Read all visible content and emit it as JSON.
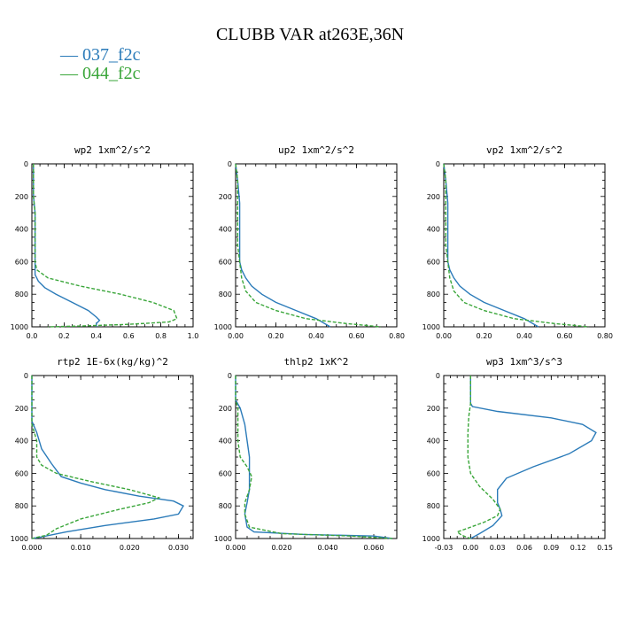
{
  "title": "CLUBB VAR at263E,36N",
  "legend": [
    {
      "label": "037_f2c",
      "color": "#2b7bb9"
    },
    {
      "label": "044_f2c",
      "color": "#3aa63a"
    }
  ],
  "chart_data": [
    {
      "type": "line",
      "title": "wp2   1xm^2/s^2",
      "xlim": [
        0.0,
        1.0
      ],
      "xticks": [
        "0.0",
        "0.2",
        "0.4",
        "0.6",
        "0.8",
        "1.0"
      ],
      "xtick_values": [
        0.0,
        0.2,
        0.4,
        0.6,
        0.8,
        1.0
      ],
      "ylim": [
        0,
        1000
      ],
      "yticks": [
        "0",
        "200",
        "400",
        "600",
        "800",
        "1000"
      ],
      "series": [
        {
          "name": "037_f2c",
          "x": [
            0.01,
            0.01,
            0.02,
            0.02,
            0.02,
            0.02,
            0.02,
            0.04,
            0.08,
            0.15,
            0.25,
            0.35,
            0.4,
            0.42,
            0.4,
            0.4
          ],
          "y": [
            0,
            200,
            300,
            400,
            500,
            600,
            680,
            720,
            760,
            800,
            850,
            900,
            940,
            960,
            980,
            1000
          ]
        },
        {
          "name": "044_f2c",
          "x": [
            0.01,
            0.01,
            0.02,
            0.02,
            0.02,
            0.02,
            0.03,
            0.1,
            0.3,
            0.55,
            0.75,
            0.88,
            0.9,
            0.85,
            0.6,
            0.3,
            0.1
          ],
          "y": [
            0,
            200,
            300,
            400,
            500,
            600,
            650,
            700,
            750,
            800,
            850,
            900,
            950,
            970,
            985,
            995,
            1000
          ]
        }
      ]
    },
    {
      "type": "line",
      "title": "up2   1xm^2/s^2",
      "xlim": [
        0.0,
        0.8
      ],
      "xticks": [
        "0.00",
        "0.20",
        "0.40",
        "0.60",
        "0.80"
      ],
      "xtick_values": [
        0.0,
        0.2,
        0.4,
        0.6,
        0.8
      ],
      "ylim": [
        0,
        1000
      ],
      "yticks": [
        "0",
        "200",
        "400",
        "600",
        "800",
        "1000"
      ],
      "series": [
        {
          "name": "037_f2c",
          "x": [
            0.0,
            0.01,
            0.02,
            0.02,
            0.02,
            0.02,
            0.02,
            0.03,
            0.05,
            0.08,
            0.13,
            0.2,
            0.3,
            0.4,
            0.47
          ],
          "y": [
            0,
            100,
            240,
            300,
            400,
            500,
            600,
            650,
            700,
            750,
            800,
            850,
            900,
            950,
            1000
          ]
        },
        {
          "name": "044_f2c",
          "x": [
            0.0,
            0.01,
            0.01,
            0.01,
            0.01,
            0.01,
            0.02,
            0.03,
            0.05,
            0.1,
            0.2,
            0.35,
            0.55,
            0.72
          ],
          "y": [
            0,
            100,
            200,
            300,
            400,
            500,
            600,
            700,
            780,
            850,
            900,
            950,
            980,
            1000
          ]
        }
      ]
    },
    {
      "type": "line",
      "title": "vp2   1xm^2/s^2",
      "xlim": [
        0.0,
        0.8
      ],
      "xticks": [
        "0.00",
        "0.20",
        "0.40",
        "0.60",
        "0.80"
      ],
      "xtick_values": [
        0.0,
        0.2,
        0.4,
        0.6,
        0.8
      ],
      "ylim": [
        0,
        1000
      ],
      "yticks": [
        "0",
        "200",
        "400",
        "600",
        "800",
        "1000"
      ],
      "series": [
        {
          "name": "037_f2c",
          "x": [
            0.0,
            0.01,
            0.02,
            0.02,
            0.02,
            0.02,
            0.02,
            0.03,
            0.05,
            0.08,
            0.13,
            0.2,
            0.3,
            0.4,
            0.47
          ],
          "y": [
            0,
            100,
            240,
            300,
            400,
            500,
            600,
            650,
            700,
            750,
            800,
            850,
            900,
            950,
            1000
          ]
        },
        {
          "name": "044_f2c",
          "x": [
            0.0,
            0.01,
            0.01,
            0.01,
            0.01,
            0.01,
            0.02,
            0.03,
            0.05,
            0.1,
            0.2,
            0.35,
            0.55,
            0.72
          ],
          "y": [
            0,
            100,
            200,
            300,
            400,
            500,
            600,
            700,
            780,
            850,
            900,
            950,
            980,
            1000
          ]
        }
      ]
    },
    {
      "type": "line",
      "title": "rtp2   1E-6x(kg/kg)^2",
      "xlim": [
        0.0,
        0.033
      ],
      "xticks": [
        "0.000",
        "0.010",
        "0.020",
        "0.030"
      ],
      "xtick_values": [
        0.0,
        0.01,
        0.02,
        0.03
      ],
      "ylim": [
        0,
        1000
      ],
      "yticks": [
        "0",
        "200",
        "400",
        "600",
        "800",
        "1000"
      ],
      "series": [
        {
          "name": "037_f2c",
          "x": [
            0.0,
            0.0,
            0.001,
            0.002,
            0.004,
            0.006,
            0.01,
            0.015,
            0.022,
            0.029,
            0.031,
            0.03,
            0.025,
            0.015,
            0.007,
            0.002,
            0.0
          ],
          "y": [
            0,
            280,
            350,
            450,
            540,
            620,
            660,
            700,
            740,
            770,
            800,
            850,
            880,
            920,
            960,
            990,
            1000
          ]
        },
        {
          "name": "044_f2c",
          "x": [
            0.0,
            0.0,
            0.001,
            0.001,
            0.002,
            0.005,
            0.012,
            0.02,
            0.026,
            0.024,
            0.018,
            0.01,
            0.005,
            0.003,
            0.0
          ],
          "y": [
            0,
            300,
            400,
            500,
            550,
            600,
            650,
            700,
            750,
            780,
            820,
            880,
            940,
            980,
            1000
          ]
        }
      ]
    },
    {
      "type": "line",
      "title": "thlp2   1xK^2",
      "xlim": [
        0.0,
        0.07
      ],
      "xticks": [
        "0.000",
        "0.020",
        "0.040",
        "0.060"
      ],
      "xtick_values": [
        0.0,
        0.02,
        0.04,
        0.06
      ],
      "ylim": [
        0,
        1000
      ],
      "yticks": [
        "0",
        "200",
        "400",
        "600",
        "800",
        "1000"
      ],
      "series": [
        {
          "name": "037_f2c",
          "x": [
            0.0,
            0.0,
            0.002,
            0.004,
            0.005,
            0.006,
            0.006,
            0.006,
            0.005,
            0.004,
            0.005,
            0.008,
            0.03,
            0.06,
            0.068
          ],
          "y": [
            0,
            150,
            200,
            300,
            400,
            500,
            600,
            700,
            780,
            850,
            930,
            960,
            975,
            985,
            1000
          ]
        },
        {
          "name": "044_f2c",
          "x": [
            0.0,
            0.0,
            0.001,
            0.001,
            0.001,
            0.002,
            0.005,
            0.007,
            0.006,
            0.004,
            0.004,
            0.006,
            0.02,
            0.05,
            0.068
          ],
          "y": [
            0,
            150,
            200,
            300,
            400,
            500,
            560,
            620,
            700,
            780,
            850,
            930,
            970,
            985,
            1000
          ]
        }
      ]
    },
    {
      "type": "line",
      "title": "wp3   1xm^3/s^3",
      "xlim": [
        -0.03,
        0.15
      ],
      "xticks": [
        "-0.03",
        "0.00",
        "0.03",
        "0.06",
        "0.09",
        "0.12",
        "0.15"
      ],
      "xtick_values": [
        -0.03,
        0.0,
        0.03,
        0.06,
        0.09,
        0.12,
        0.15
      ],
      "ylim": [
        0,
        1000
      ],
      "yticks": [
        "0",
        "200",
        "400",
        "600",
        "800",
        "1000"
      ],
      "series": [
        {
          "name": "037_f2c",
          "x": [
            0.0,
            0.0,
            0.002,
            0.03,
            0.09,
            0.125,
            0.14,
            0.135,
            0.11,
            0.07,
            0.04,
            0.03,
            0.03,
            0.033,
            0.035,
            0.025,
            0.01,
            0.0
          ],
          "y": [
            0,
            170,
            190,
            220,
            260,
            300,
            350,
            400,
            480,
            560,
            630,
            700,
            780,
            820,
            860,
            920,
            970,
            1000
          ]
        },
        {
          "name": "044_f2c",
          "x": [
            0.0,
            0.0,
            -0.002,
            -0.003,
            -0.003,
            0.0,
            0.01,
            0.025,
            0.033,
            0.03,
            0.015,
            -0.005,
            -0.015,
            -0.01,
            0.0
          ],
          "y": [
            0,
            170,
            250,
            350,
            500,
            600,
            680,
            760,
            820,
            860,
            900,
            940,
            960,
            980,
            1000
          ]
        }
      ]
    }
  ]
}
